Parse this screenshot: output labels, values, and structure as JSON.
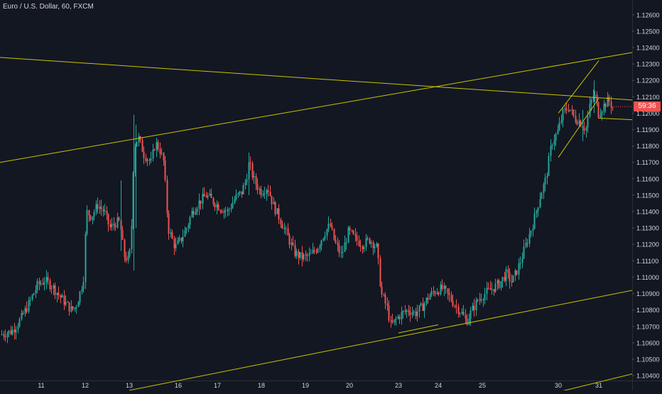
{
  "chart_data": {
    "type": "candlestick",
    "title": "Euro / U.S. Dollar, 60, FXCM",
    "price_axis": {
      "ylim": [
        1.1037,
        1.1269
      ],
      "ticks": [
        "1.12600",
        "1.12500",
        "1.12400",
        "1.12300",
        "1.12200",
        "1.12100",
        "1.12000",
        "1.11900",
        "1.11800",
        "1.11700",
        "1.11600",
        "1.11500",
        "1.11400",
        "1.11300",
        "1.11200",
        "1.11100",
        "1.11000",
        "1.10900",
        "1.10800",
        "1.10700",
        "1.10600",
        "1.10500",
        "1.10400"
      ]
    },
    "time_axis": {
      "labels": [
        "11",
        "12",
        "13",
        "16",
        "17",
        "18",
        "19",
        "20",
        "23",
        "24",
        "25",
        "30",
        "31"
      ]
    },
    "current_price_label": "59:36",
    "colors": {
      "background": "#131722",
      "up": "#26a69a",
      "down": "#ef5350",
      "trendline": "#c9c400",
      "axis_text": "#d1d4dc"
    },
    "trendlines": [
      {
        "from": [
          "start",
          1.1234
        ],
        "to": [
          "end",
          1.1208
        ]
      },
      {
        "from": [
          "start",
          1.117
        ],
        "to": [
          "end",
          1.1237
        ]
      },
      {
        "from": [
          "13",
          1.1031
        ],
        "to": [
          "end",
          1.1092
        ]
      },
      {
        "from": [
          "30",
          1.103
        ],
        "to": [
          "end",
          1.1041
        ]
      },
      {
        "from": [
          "23",
          1.1066
        ],
        "to": [
          "24",
          1.1071
        ]
      },
      {
        "from": [
          "30",
          1.12
        ],
        "to": [
          "31",
          1.1232
        ]
      },
      {
        "from": [
          "30",
          1.1173
        ],
        "to": [
          "31",
          1.1209
        ]
      },
      {
        "from": [
          "31",
          1.1197
        ],
        "to": [
          "end",
          1.1196
        ]
      }
    ],
    "grid": false,
    "legend": "none"
  }
}
